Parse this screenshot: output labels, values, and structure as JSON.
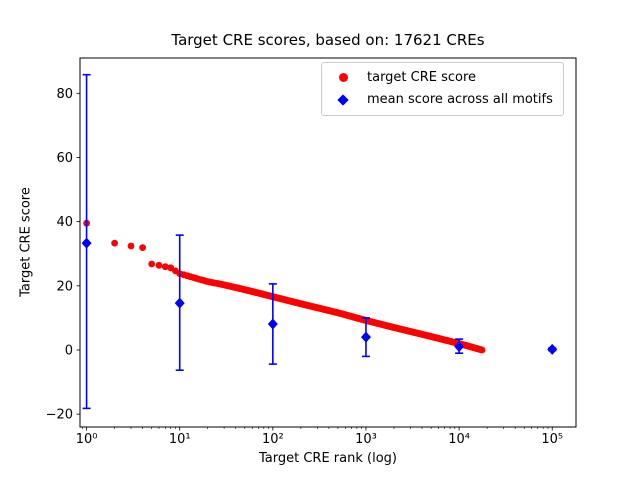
{
  "chart_data": {
    "type": "scatter",
    "title": "Target CRE scores, based on: 17621 CREs",
    "xlabel": "Target CRE rank (log)",
    "ylabel": "Target CRE score",
    "x_scale": "log",
    "xlim": [
      0.85,
      180000
    ],
    "ylim": [
      -24,
      91
    ],
    "xticks": [
      1,
      10,
      100,
      1000,
      10000,
      100000
    ],
    "xtick_labels": [
      "10⁰",
      "10¹",
      "10²",
      "10³",
      "10⁴",
      "10⁵"
    ],
    "yticks": [
      -20,
      0,
      20,
      40,
      60,
      80
    ],
    "ytick_labels": [
      "−20",
      "0",
      "20",
      "40",
      "60",
      "80"
    ],
    "grid": false,
    "legend_position": "upper right",
    "total_cres": 17621,
    "series": [
      {
        "name": "target CRE score",
        "type": "scatter",
        "marker": "circle",
        "color": "#ff0000",
        "anchors": [
          [
            1,
            39.5
          ],
          [
            2,
            33.3
          ],
          [
            3,
            32.4
          ],
          [
            4,
            31.9
          ],
          [
            5,
            26.8
          ],
          [
            6,
            26.4
          ],
          [
            8,
            25.6
          ],
          [
            10,
            23.8
          ],
          [
            20,
            21.3
          ],
          [
            30,
            20.3
          ],
          [
            50,
            18.8
          ],
          [
            100,
            16.6
          ],
          [
            200,
            14.4
          ],
          [
            500,
            11.6
          ],
          [
            1000,
            9.2
          ],
          [
            2000,
            7.0
          ],
          [
            5000,
            4.2
          ],
          [
            10000,
            2.0
          ],
          [
            17621,
            0.0
          ]
        ]
      },
      {
        "name": "mean score across all motifs",
        "type": "errorbar",
        "marker": "diamond",
        "color": "#0000ff",
        "points": [
          {
            "x": 1,
            "y": 33.3,
            "lo": -18.2,
            "hi": 85.8
          },
          {
            "x": 10,
            "y": 14.6,
            "lo": -6.3,
            "hi": 35.8
          },
          {
            "x": 100,
            "y": 8.1,
            "lo": -4.4,
            "hi": 20.6
          },
          {
            "x": 1000,
            "y": 4.0,
            "lo": -2.0,
            "hi": 10.0
          },
          {
            "x": 10000,
            "y": 1.1,
            "lo": -1.0,
            "hi": 3.4
          },
          {
            "x": 100000,
            "y": 0.2,
            "lo": -0.2,
            "hi": 0.6
          }
        ]
      }
    ]
  }
}
